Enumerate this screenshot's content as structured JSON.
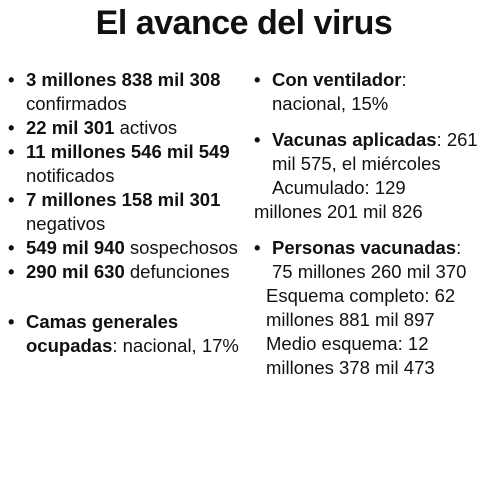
{
  "title": "El avance del virus",
  "bullet": "•",
  "left": [
    {
      "bold": "3 millones 838 mil 308",
      "rest": " confirmados"
    },
    {
      "bold": "22 mil 301",
      "rest": " activos"
    },
    {
      "bold": "11 millones 546 mil 549",
      "rest": " notificados"
    },
    {
      "bold": "7 millones 158 mil 301",
      "rest": " negativos"
    },
    {
      "bold": "549 mil 940",
      "rest": " sospechosos"
    },
    {
      "bold": "290 mil 630",
      "rest": " defunciones"
    },
    {
      "bold": "Camas generales ocupadas",
      "rest": ": nacional, 17%"
    }
  ],
  "right": {
    "ventilador": {
      "bold": "Con ventilador",
      "rest": ": nacional, 15%"
    },
    "vacunas": {
      "bold": "Vacunas aplicadas",
      "rest": ": 261 mil 575, el miércoles"
    },
    "acumulado_1": "Acumulado: 129",
    "acumulado_2": "millones 201 mil 826",
    "personas": {
      "bold": "Personas vacunadas",
      "rest": ": 75 millones 260 mil 370"
    },
    "esquema_completo": "Esquema completo: 62 millones 881 mil 897",
    "medio_esquema": "Medio esquema: 12 millones 378 mil 473"
  }
}
